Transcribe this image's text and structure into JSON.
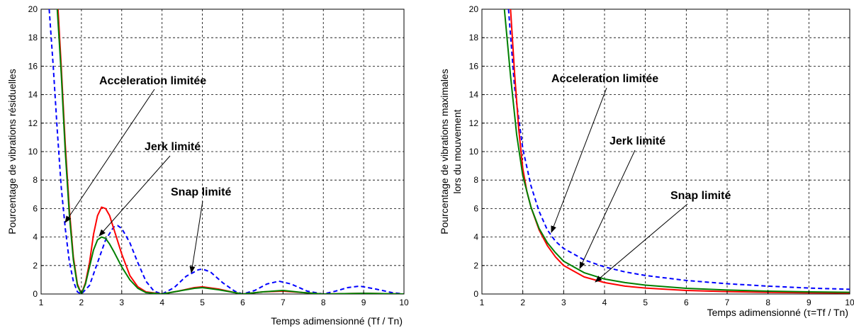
{
  "chart_data": [
    {
      "type": "line",
      "xlabel": "Temps adimensionné (Tf / Tn)",
      "ylabel": "Pourcentage de vibrations résiduelles",
      "xlim": [
        1,
        10
      ],
      "ylim": [
        0,
        20
      ],
      "xticks": [
        "1",
        "2",
        "3",
        "4",
        "5",
        "6",
        "7",
        "8",
        "9",
        "10"
      ],
      "yticks": [
        "0",
        "2",
        "4",
        "6",
        "8",
        "10",
        "12",
        "14",
        "16",
        "18",
        "20"
      ],
      "grid": true,
      "series": [
        {
          "color": "#0000ff",
          "dash": "6,4",
          "points": [
            [
              1.2,
              20
            ],
            [
              1.3,
              16
            ],
            [
              1.4,
              11.5
            ],
            [
              1.5,
              7.5
            ],
            [
              1.6,
              4.6
            ],
            [
              1.7,
              2.3
            ],
            [
              1.8,
              0.9
            ],
            [
              1.9,
              0.15
            ],
            [
              2.0,
              0
            ],
            [
              2.2,
              0.6
            ],
            [
              2.4,
              2.2
            ],
            [
              2.6,
              3.8
            ],
            [
              2.8,
              4.7
            ],
            [
              2.9,
              4.8
            ],
            [
              3.0,
              4.6
            ],
            [
              3.2,
              3.6
            ],
            [
              3.4,
              2.2
            ],
            [
              3.6,
              0.9
            ],
            [
              3.8,
              0.2
            ],
            [
              4.0,
              0
            ],
            [
              4.3,
              0.45
            ],
            [
              4.6,
              1.25
            ],
            [
              4.9,
              1.7
            ],
            [
              5.0,
              1.75
            ],
            [
              5.2,
              1.55
            ],
            [
              5.5,
              0.8
            ],
            [
              5.8,
              0.2
            ],
            [
              6.0,
              0
            ],
            [
              6.3,
              0.25
            ],
            [
              6.6,
              0.7
            ],
            [
              6.9,
              0.9
            ],
            [
              7.2,
              0.7
            ],
            [
              7.6,
              0.2
            ],
            [
              8.0,
              0
            ],
            [
              8.3,
              0.2
            ],
            [
              8.6,
              0.45
            ],
            [
              8.9,
              0.55
            ],
            [
              9.3,
              0.35
            ],
            [
              9.7,
              0.1
            ],
            [
              10,
              0
            ]
          ]
        },
        {
          "color": "#ff0000",
          "dash": "",
          "points": [
            [
              1.42,
              20
            ],
            [
              1.5,
              16
            ],
            [
              1.6,
              10.5
            ],
            [
              1.7,
              6
            ],
            [
              1.8,
              2.6
            ],
            [
              1.9,
              0.7
            ],
            [
              2.0,
              0
            ],
            [
              2.1,
              0.8
            ],
            [
              2.2,
              2.2
            ],
            [
              2.3,
              4.2
            ],
            [
              2.4,
              5.5
            ],
            [
              2.5,
              6.1
            ],
            [
              2.6,
              6.0
            ],
            [
              2.7,
              5.5
            ],
            [
              2.8,
              4.6
            ],
            [
              3.0,
              2.8
            ],
            [
              3.2,
              1.3
            ],
            [
              3.4,
              0.5
            ],
            [
              3.6,
              0.15
            ],
            [
              4.0,
              0
            ],
            [
              4.4,
              0.2
            ],
            [
              4.8,
              0.45
            ],
            [
              5.0,
              0.5
            ],
            [
              5.4,
              0.35
            ],
            [
              5.8,
              0.1
            ],
            [
              6.0,
              0
            ],
            [
              6.5,
              0.15
            ],
            [
              7.0,
              0.2
            ],
            [
              7.5,
              0.1
            ],
            [
              8.0,
              0
            ],
            [
              9.0,
              0.05
            ],
            [
              10,
              0
            ]
          ]
        },
        {
          "color": "#008000",
          "dash": "",
          "points": [
            [
              1.4,
              20
            ],
            [
              1.5,
              15.5
            ],
            [
              1.6,
              10
            ],
            [
              1.7,
              5.6
            ],
            [
              1.8,
              2.4
            ],
            [
              1.9,
              0.6
            ],
            [
              2.0,
              0
            ],
            [
              2.1,
              0.7
            ],
            [
              2.2,
              1.9
            ],
            [
              2.3,
              3.1
            ],
            [
              2.4,
              3.8
            ],
            [
              2.5,
              4.0
            ],
            [
              2.6,
              3.9
            ],
            [
              2.7,
              3.5
            ],
            [
              2.8,
              3.0
            ],
            [
              3.0,
              1.9
            ],
            [
              3.2,
              1.0
            ],
            [
              3.4,
              0.4
            ],
            [
              3.6,
              0.1
            ],
            [
              4.0,
              0
            ],
            [
              4.4,
              0.2
            ],
            [
              4.8,
              0.4
            ],
            [
              5.0,
              0.45
            ],
            [
              5.4,
              0.3
            ],
            [
              5.8,
              0.1
            ],
            [
              6.0,
              0
            ],
            [
              6.5,
              0.15
            ],
            [
              7.0,
              0.25
            ],
            [
              7.5,
              0.1
            ],
            [
              8.0,
              0
            ],
            [
              9.0,
              0.05
            ],
            [
              10,
              0
            ]
          ]
        }
      ],
      "annotations": [
        {
          "text": "Acceleration limitée",
          "series": 0
        },
        {
          "text": "Jerk limité",
          "series": 1
        },
        {
          "text": "Snap limité",
          "series": 2
        }
      ]
    },
    {
      "type": "line",
      "xlabel": "Temps adimensionné (τ=Tf / Tn)",
      "ylabel": "Pourcentage de vibrations maximales",
      "ylabel2": "lors du mouvement",
      "xlim": [
        1,
        10
      ],
      "ylim": [
        0,
        20
      ],
      "xticks": [
        "1",
        "2",
        "3",
        "4",
        "5",
        "6",
        "7",
        "8",
        "9",
        "10"
      ],
      "yticks": [
        "0",
        "2",
        "4",
        "6",
        "8",
        "10",
        "12",
        "14",
        "16",
        "18",
        "20"
      ],
      "grid": true,
      "series": [
        {
          "color": "#0000ff",
          "dash": "6,4",
          "points": [
            [
              1.65,
              20
            ],
            [
              1.8,
              14.5
            ],
            [
              2.0,
              10.2
            ],
            [
              2.2,
              7.6
            ],
            [
              2.4,
              5.8
            ],
            [
              2.6,
              4.5
            ],
            [
              2.8,
              3.7
            ],
            [
              3.0,
              3.2
            ],
            [
              3.5,
              2.4
            ],
            [
              4.0,
              1.9
            ],
            [
              4.5,
              1.55
            ],
            [
              5.0,
              1.3
            ],
            [
              6.0,
              0.95
            ],
            [
              7.0,
              0.72
            ],
            [
              8.0,
              0.55
            ],
            [
              9.0,
              0.42
            ],
            [
              10,
              0.33
            ]
          ]
        },
        {
          "color": "#ff0000",
          "dash": "",
          "points": [
            [
              1.7,
              20
            ],
            [
              1.8,
              15.5
            ],
            [
              1.9,
              11.6
            ],
            [
              2.0,
              8.8
            ],
            [
              2.1,
              7.2
            ],
            [
              2.2,
              6.1
            ],
            [
              2.4,
              4.5
            ],
            [
              2.6,
              3.4
            ],
            [
              2.8,
              2.6
            ],
            [
              3.0,
              2.0
            ],
            [
              3.5,
              1.2
            ],
            [
              4.0,
              0.8
            ],
            [
              4.5,
              0.55
            ],
            [
              5.0,
              0.42
            ],
            [
              6.0,
              0.25
            ],
            [
              7.0,
              0.17
            ],
            [
              8.0,
              0.12
            ],
            [
              9.0,
              0.09
            ],
            [
              10,
              0.07
            ]
          ]
        },
        {
          "color": "#008000",
          "dash": "",
          "points": [
            [
              1.55,
              20
            ],
            [
              1.7,
              15.3
            ],
            [
              1.85,
              11.2
            ],
            [
              2.0,
              8.3
            ],
            [
              2.2,
              6.1
            ],
            [
              2.4,
              4.6
            ],
            [
              2.6,
              3.6
            ],
            [
              2.8,
              2.9
            ],
            [
              3.0,
              2.3
            ],
            [
              3.5,
              1.5
            ],
            [
              4.0,
              1.05
            ],
            [
              4.5,
              0.8
            ],
            [
              5.0,
              0.62
            ],
            [
              6.0,
              0.4
            ],
            [
              7.0,
              0.28
            ],
            [
              8.0,
              0.2
            ],
            [
              9.0,
              0.15
            ],
            [
              10,
              0.12
            ]
          ]
        }
      ],
      "annotations": [
        {
          "text": "Acceleration limitée",
          "series": 0
        },
        {
          "text": "Jerk limité",
          "series": 2
        },
        {
          "text": "Snap limité",
          "series": 1
        }
      ]
    }
  ]
}
